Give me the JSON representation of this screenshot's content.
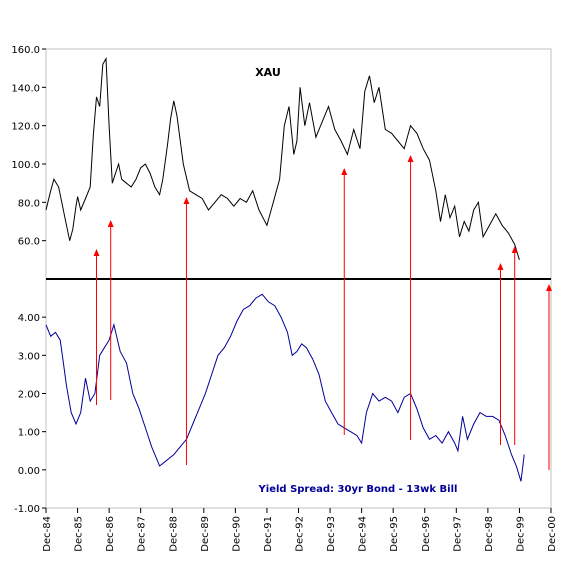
{
  "chart_data": [
    {
      "type": "line",
      "panel": "top",
      "title": "XAU",
      "ylim": [
        40,
        160
      ],
      "yticks": [
        "160.0",
        "140.0",
        "120.0",
        "100.0",
        "80.0",
        "60.0"
      ],
      "ytick_values": [
        160,
        140,
        120,
        100,
        80,
        60
      ],
      "line_color": "#000000",
      "series": [
        {
          "x": [
            1984.95,
            1985.1,
            1985.2,
            1985.35,
            1985.45,
            1985.55,
            1985.7,
            1985.8,
            1985.9,
            1985.95,
            1986.05,
            1986.2,
            1986.35,
            1986.45,
            1986.55,
            1986.65,
            1986.75,
            1986.85,
            1986.95,
            1987.05,
            1987.15,
            1987.25,
            1987.35,
            1987.5,
            1987.65,
            1987.8,
            1987.95,
            1988.1,
            1988.25,
            1988.4,
            1988.55,
            1988.65,
            1988.8,
            1988.9,
            1989.0,
            1989.1,
            1989.3,
            1989.5,
            1989.7,
            1989.9,
            1990.1,
            1990.3,
            1990.5,
            1990.7,
            1990.9,
            1991.1,
            1991.3,
            1991.5,
            1991.7,
            1991.95,
            1992.15,
            1992.35,
            1992.5,
            1992.65,
            1992.8,
            1992.9,
            1993.0,
            1993.15,
            1993.3,
            1993.5,
            1993.7,
            1993.9,
            1994.1,
            1994.3,
            1994.5,
            1994.7,
            1994.9,
            1995.05,
            1995.2,
            1995.35,
            1995.5,
            1995.7,
            1995.9,
            1996.1,
            1996.3,
            1996.5,
            1996.7,
            1996.9,
            1997.1,
            1997.3,
            1997.45,
            1997.6,
            1997.75,
            1997.9,
            1998.05,
            1998.2,
            1998.35,
            1998.5,
            1998.65,
            1998.8,
            1999.0,
            1999.2,
            1999.4,
            1999.6,
            1999.8,
            1999.95
          ],
          "y": [
            76,
            86,
            92,
            88,
            80,
            72,
            60,
            66,
            78,
            83,
            76,
            82,
            88,
            115,
            135,
            130,
            152,
            155,
            120,
            90,
            95,
            100,
            92,
            90,
            88,
            92,
            98,
            100,
            95,
            88,
            84,
            92,
            110,
            124,
            133,
            125,
            100,
            86,
            84,
            82,
            76,
            80,
            84,
            82,
            78,
            82,
            80,
            86,
            76,
            68,
            80,
            92,
            120,
            130,
            105,
            112,
            140,
            120,
            132,
            114,
            122,
            130,
            118,
            112,
            105,
            118,
            108,
            138,
            146,
            132,
            140,
            118,
            116,
            112,
            108,
            120,
            116,
            108,
            102,
            86,
            70,
            84,
            72,
            78,
            62,
            70,
            65,
            76,
            80,
            62,
            68,
            74,
            68,
            64,
            58,
            50
          ]
        }
      ]
    },
    {
      "type": "line",
      "panel": "bottom",
      "annotation": "Yield Spread: 30yr Bond - 13wk Bill",
      "ylim": [
        -1.0,
        5.0
      ],
      "yticks": [
        "4.00",
        "3.00",
        "2.00",
        "1.00",
        "0.00",
        "-1.00"
      ],
      "ytick_values": [
        4,
        3,
        2,
        1,
        0,
        -1
      ],
      "line_color": "#000099",
      "series": [
        {
          "x": [
            1984.95,
            1985.1,
            1985.25,
            1985.4,
            1985.5,
            1985.6,
            1985.75,
            1985.9,
            1986.05,
            1986.2,
            1986.35,
            1986.5,
            1986.65,
            1986.8,
            1986.95,
            1987.1,
            1987.3,
            1987.5,
            1987.7,
            1987.9,
            1988.1,
            1988.3,
            1988.45,
            1988.55,
            1988.7,
            1988.85,
            1989.0,
            1989.2,
            1989.4,
            1989.6,
            1989.8,
            1990.0,
            1990.2,
            1990.4,
            1990.6,
            1990.8,
            1991.0,
            1991.2,
            1991.4,
            1991.6,
            1991.8,
            1992.0,
            1992.2,
            1992.4,
            1992.6,
            1992.75,
            1992.9,
            1993.05,
            1993.2,
            1993.4,
            1993.6,
            1993.8,
            1994.0,
            1994.2,
            1994.4,
            1994.6,
            1994.8,
            1994.95,
            1995.1,
            1995.3,
            1995.5,
            1995.7,
            1995.9,
            1996.1,
            1996.3,
            1996.5,
            1996.7,
            1996.9,
            1997.1,
            1997.3,
            1997.5,
            1997.7,
            1997.9,
            1998.0,
            1998.15,
            1998.3,
            1998.5,
            1998.7,
            1998.9,
            1999.1,
            1999.3,
            1999.5,
            1999.7,
            1999.85,
            2000.0,
            2000.1
          ],
          "y": [
            3.8,
            3.5,
            3.6,
            3.4,
            2.8,
            2.2,
            1.5,
            1.2,
            1.5,
            2.4,
            1.8,
            2.0,
            3.0,
            3.2,
            3.4,
            3.8,
            3.1,
            2.8,
            2.0,
            1.6,
            1.1,
            0.6,
            0.3,
            0.1,
            0.2,
            0.3,
            0.4,
            0.6,
            0.8,
            1.2,
            1.6,
            2.0,
            2.5,
            3.0,
            3.2,
            3.5,
            3.9,
            4.2,
            4.3,
            4.5,
            4.6,
            4.4,
            4.3,
            4.0,
            3.6,
            3.0,
            3.1,
            3.3,
            3.2,
            2.9,
            2.5,
            1.8,
            1.5,
            1.2,
            1.1,
            1.0,
            0.9,
            0.7,
            1.5,
            2.0,
            1.8,
            1.9,
            1.8,
            1.5,
            1.9,
            2.0,
            1.6,
            1.1,
            0.8,
            0.9,
            0.7,
            1.0,
            0.7,
            0.5,
            1.4,
            0.8,
            1.2,
            1.5,
            1.4,
            1.4,
            1.3,
            0.9,
            0.4,
            0.1,
            -0.3,
            0.4
          ]
        }
      ]
    }
  ],
  "shared_x": {
    "x_tick_labels": [
      "Dec-84",
      "Dec-85",
      "Dec-86",
      "Dec-87",
      "Dec-88",
      "Dec-89",
      "Dec-90",
      "Dec-91",
      "Dec-92",
      "Dec-93",
      "Dec-94",
      "Dec-95",
      "Dec-96",
      "Dec-97",
      "Dec-98",
      "Dec-99",
      "Dec-00"
    ],
    "x_tick_values": [
      1984.95,
      1985.95,
      1986.95,
      1987.95,
      1988.95,
      1989.95,
      1990.95,
      1991.95,
      1992.95,
      1993.95,
      1994.95,
      1995.95,
      1996.95,
      1997.95,
      1998.95,
      1999.95,
      2000.95
    ],
    "xlim": [
      1984.95,
      2000.95
    ]
  },
  "arrows": {
    "color": "#ff0000",
    "x": [
      1986.55,
      1987.0,
      1989.4,
      1994.4,
      1996.5,
      1999.35,
      1999.8,
      2001.75
    ]
  }
}
